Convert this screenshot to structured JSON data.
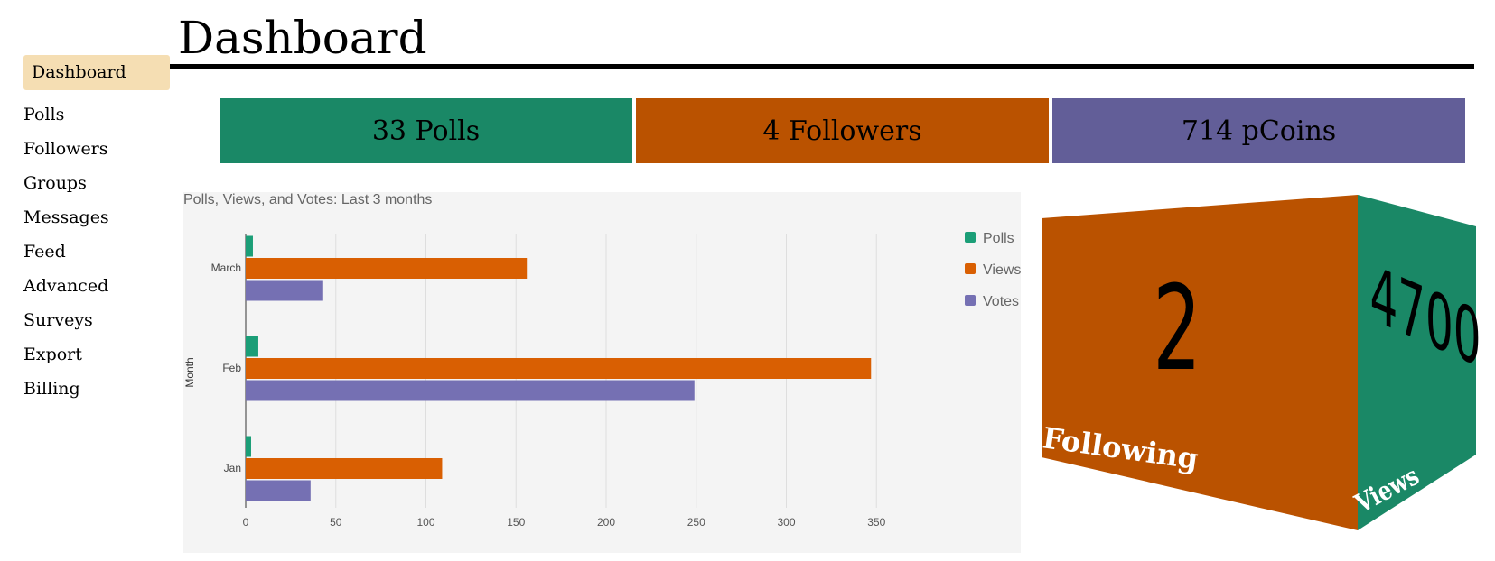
{
  "header": {
    "title": "Dashboard"
  },
  "sidebar": {
    "items": [
      {
        "label": "Dashboard",
        "active": true
      },
      {
        "label": "Polls"
      },
      {
        "label": "Followers"
      },
      {
        "label": "Groups"
      },
      {
        "label": "Messages"
      },
      {
        "label": "Feed"
      },
      {
        "label": "Advanced"
      },
      {
        "label": "Surveys"
      },
      {
        "label": "Export"
      },
      {
        "label": "Billing"
      }
    ]
  },
  "stats": [
    {
      "label": "33 Polls",
      "color": "#1a8866"
    },
    {
      "label": "4 Followers",
      "color": "#ba5200"
    },
    {
      "label": "714 pCoins",
      "color": "#625e98"
    }
  ],
  "cube": {
    "front_value": "2",
    "front_label": "Following",
    "front_color": "#ba5200",
    "side_value": "4700",
    "side_label": "Views",
    "side_color": "#1a8866"
  },
  "chart_data": {
    "type": "bar",
    "orientation": "horizontal",
    "title": "Polls, Views, and Votes: Last 3 months",
    "ylabel": "Month",
    "xlabel": "",
    "categories": [
      "March",
      "Feb",
      "Jan"
    ],
    "series": [
      {
        "name": "Polls",
        "color": "#1b9e77",
        "values": [
          4,
          7,
          3
        ]
      },
      {
        "name": "Views",
        "color": "#d95f02",
        "values": [
          156,
          347,
          109
        ]
      },
      {
        "name": "Votes",
        "color": "#7570b3",
        "values": [
          43,
          249,
          36
        ]
      }
    ],
    "xticks": [
      0,
      50,
      100,
      150,
      200,
      250,
      300,
      350
    ],
    "xlim": [
      0,
      390
    ],
    "grid": true,
    "legend_position": "right"
  }
}
